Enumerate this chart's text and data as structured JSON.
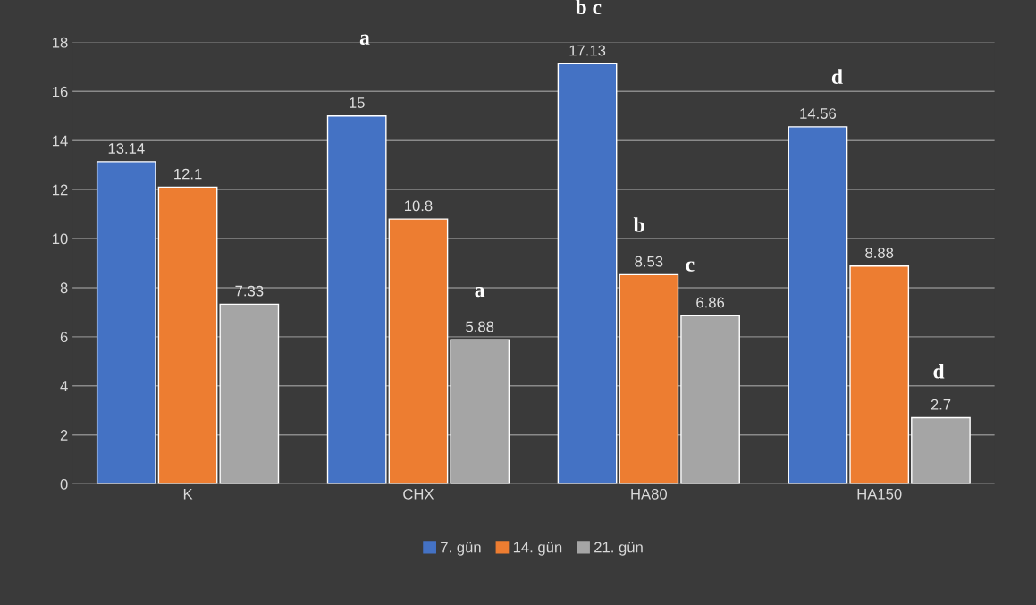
{
  "chart_data": {
    "type": "bar",
    "categories": [
      "K",
      "CHX",
      "HA80",
      "HA150"
    ],
    "series": [
      {
        "name": "7. gün",
        "color": "#4472c4",
        "values": [
          13.14,
          15,
          17.13,
          14.56
        ]
      },
      {
        "name": "14. gün",
        "color": "#ed7d31",
        "values": [
          12.1,
          10.8,
          8.53,
          8.88
        ]
      },
      {
        "name": "21. gün",
        "color": "#a5a5a5",
        "values": [
          7.33,
          5.88,
          6.86,
          2.7
        ]
      }
    ],
    "ylim": [
      0,
      18
    ],
    "yticks": [
      0,
      2,
      4,
      6,
      8,
      10,
      12,
      14,
      16,
      18
    ],
    "grid": "y",
    "legend": "bottom",
    "data_labels": true,
    "annotations": [
      "a",
      "a",
      "b c",
      "b",
      "c",
      "d",
      "d"
    ]
  }
}
